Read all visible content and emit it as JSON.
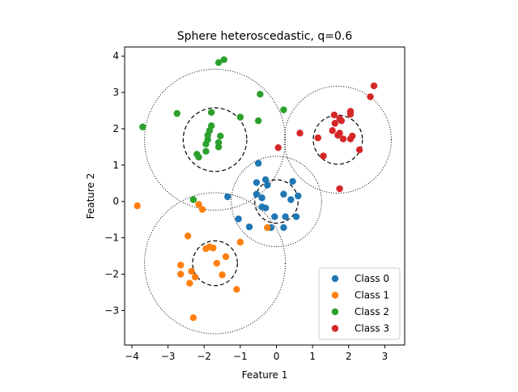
{
  "chart_data": {
    "type": "scatter",
    "title": "Sphere heteroscedastic, q=0.6",
    "xlabel": "Feature 1",
    "ylabel": "Feature 2",
    "xlim": [
      -4.2,
      3.55
    ],
    "ylim": [
      -3.95,
      4.25
    ],
    "xticks": [
      -4,
      -3,
      -2,
      -1,
      0,
      1,
      2,
      3
    ],
    "yticks": [
      -3,
      -2,
      -1,
      0,
      1,
      2,
      3,
      4
    ],
    "aspect": "equal",
    "grid": false,
    "legend_position": "lower right",
    "series": [
      {
        "name": "Class 0",
        "color": "#1f77b4",
        "points": [
          [
            -0.5,
            1.05
          ],
          [
            -0.3,
            0.6
          ],
          [
            -0.55,
            0.52
          ],
          [
            -0.25,
            0.45
          ],
          [
            0.45,
            0.55
          ],
          [
            -0.55,
            0.2
          ],
          [
            -0.4,
            0.1
          ],
          [
            0.2,
            0.2
          ],
          [
            0.4,
            0.05
          ],
          [
            0.6,
            0.15
          ],
          [
            -0.4,
            -0.15
          ],
          [
            -0.3,
            -0.18
          ],
          [
            -0.05,
            -0.42
          ],
          [
            0.25,
            -0.42
          ],
          [
            0.55,
            -0.42
          ],
          [
            -1.35,
            0.13
          ],
          [
            -1.05,
            -0.48
          ],
          [
            -0.75,
            -0.7
          ],
          [
            -0.15,
            -0.72
          ],
          [
            0.2,
            -0.72
          ]
        ]
      },
      {
        "name": "Class 1",
        "color": "#ff7f0e",
        "points": [
          [
            -3.85,
            -0.12
          ],
          [
            -2.15,
            -0.08
          ],
          [
            -2.05,
            -0.22
          ],
          [
            -2.45,
            -0.95
          ],
          [
            -1.0,
            -1.12
          ],
          [
            -1.85,
            -1.25
          ],
          [
            -1.75,
            -1.28
          ],
          [
            -1.95,
            -1.3
          ],
          [
            -1.4,
            -1.52
          ],
          [
            -2.65,
            -1.75
          ],
          [
            -1.65,
            -1.7
          ],
          [
            -2.65,
            -2.0
          ],
          [
            -2.35,
            -1.92
          ],
          [
            -2.25,
            -2.08
          ],
          [
            -1.5,
            -2.02
          ],
          [
            -2.4,
            -2.25
          ],
          [
            -1.1,
            -2.42
          ],
          [
            -2.3,
            -3.2
          ],
          [
            -0.25,
            -0.72
          ]
        ]
      },
      {
        "name": "Class 2",
        "color": "#2ca02c",
        "points": [
          [
            -1.6,
            3.82
          ],
          [
            -1.45,
            3.9
          ],
          [
            -0.45,
            2.95
          ],
          [
            -3.7,
            2.05
          ],
          [
            -2.75,
            2.42
          ],
          [
            -1.8,
            2.45
          ],
          [
            -1.0,
            2.32
          ],
          [
            0.2,
            2.52
          ],
          [
            -0.5,
            2.22
          ],
          [
            -1.8,
            2.08
          ],
          [
            -1.85,
            1.95
          ],
          [
            -1.9,
            1.82
          ],
          [
            -1.55,
            1.8
          ],
          [
            -1.9,
            1.7
          ],
          [
            -1.6,
            1.62
          ],
          [
            -1.95,
            1.58
          ],
          [
            -1.6,
            1.5
          ],
          [
            -1.95,
            1.38
          ],
          [
            -2.2,
            1.3
          ],
          [
            -2.15,
            1.22
          ],
          [
            -2.3,
            0.05
          ]
        ]
      },
      {
        "name": "Class 3",
        "color": "#d62728",
        "points": [
          [
            2.7,
            3.18
          ],
          [
            2.6,
            2.88
          ],
          [
            2.05,
            2.48
          ],
          [
            2.05,
            2.4
          ],
          [
            1.6,
            2.38
          ],
          [
            1.75,
            2.28
          ],
          [
            1.8,
            2.22
          ],
          [
            1.62,
            2.15
          ],
          [
            1.55,
            1.95
          ],
          [
            1.75,
            1.88
          ],
          [
            1.7,
            1.82
          ],
          [
            2.1,
            1.8
          ],
          [
            1.85,
            1.72
          ],
          [
            2.05,
            1.72
          ],
          [
            0.65,
            1.88
          ],
          [
            1.15,
            1.75
          ],
          [
            0.05,
            1.48
          ],
          [
            2.3,
            1.42
          ],
          [
            1.3,
            1.25
          ],
          [
            1.75,
            0.35
          ]
        ]
      }
    ],
    "circles": [
      {
        "center": [
          0.0,
          0.0
        ],
        "r_inner": 0.6,
        "r_outer": 1.25
      },
      {
        "center": [
          -1.7,
          -1.7
        ],
        "r_inner": 0.62,
        "r_outer": 1.95
      },
      {
        "center": [
          -1.7,
          1.7
        ],
        "r_inner": 0.88,
        "r_outer": 1.95
      },
      {
        "center": [
          1.7,
          1.7
        ],
        "r_inner": 0.68,
        "r_outer": 1.48
      }
    ]
  }
}
